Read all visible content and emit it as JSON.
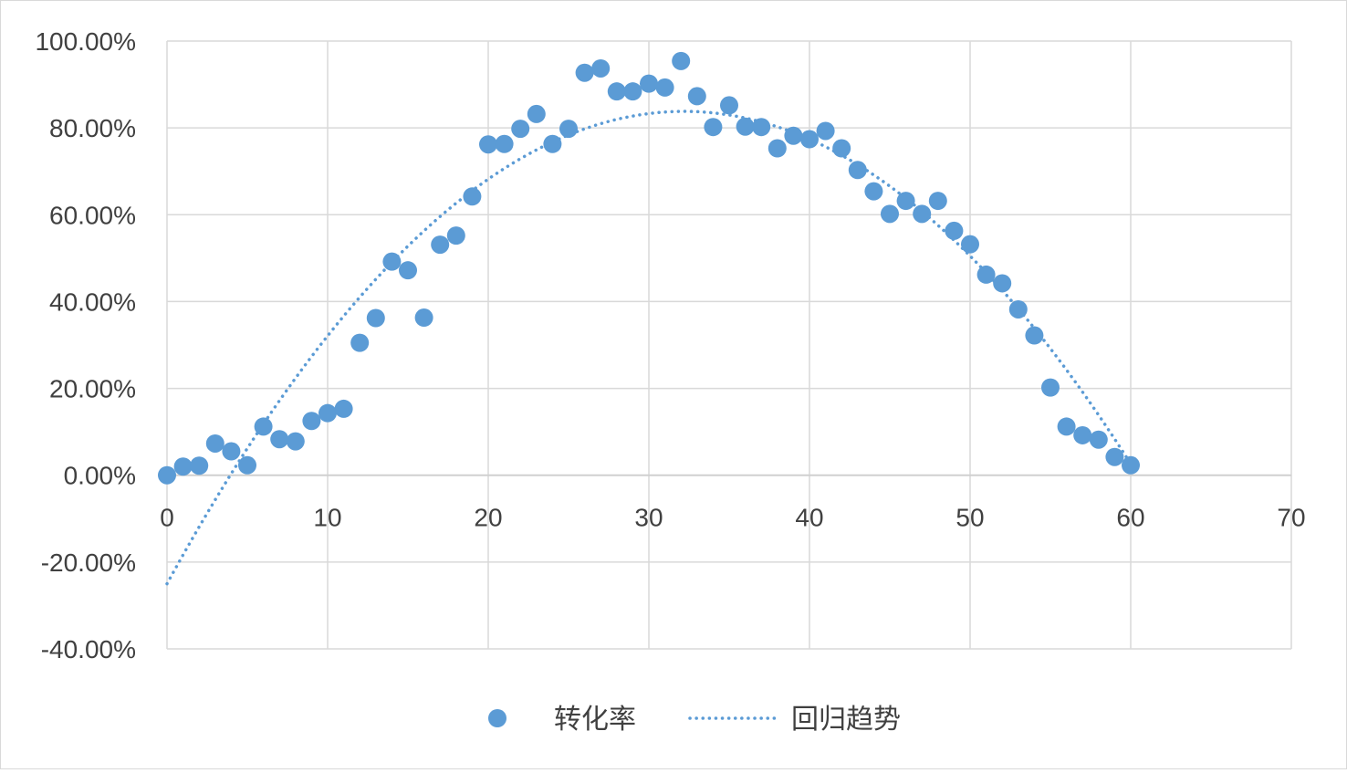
{
  "chart_data": {
    "type": "scatter",
    "title": "",
    "xlabel": "",
    "ylabel": "",
    "xlim": [
      0,
      70
    ],
    "ylim": [
      -0.4,
      1.0
    ],
    "x_ticks": [
      0,
      10,
      20,
      30,
      40,
      50,
      60,
      70
    ],
    "x_tick_labels": [
      "0",
      "10",
      "20",
      "30",
      "40",
      "50",
      "60",
      "70"
    ],
    "y_ticks": [
      -0.4,
      -0.2,
      0,
      0.2,
      0.4,
      0.6,
      0.8,
      1.0
    ],
    "y_tick_labels": [
      "-40.00%",
      "-20.00%",
      "0.00%",
      "20.00%",
      "40.00%",
      "60.00%",
      "80.00%",
      "100.00%"
    ],
    "grid": true,
    "legend_position": "bottom",
    "series": [
      {
        "name": "转化率",
        "kind": "scatter",
        "color": "#5b9bd5",
        "x": [
          0,
          1,
          2,
          3,
          4,
          5,
          6,
          7,
          8,
          9,
          10,
          11,
          12,
          13,
          14,
          15,
          16,
          17,
          18,
          19,
          20,
          21,
          22,
          23,
          24,
          25,
          26,
          27,
          28,
          29,
          30,
          31,
          32,
          33,
          34,
          35,
          36,
          37,
          38,
          39,
          40,
          41,
          42,
          43,
          44,
          45,
          46,
          47,
          48,
          49,
          50,
          51,
          52,
          53,
          54,
          55,
          56,
          57,
          58,
          59,
          60
        ],
        "y": [
          0.0,
          0.02,
          0.022,
          0.073,
          0.055,
          0.023,
          0.112,
          0.083,
          0.078,
          0.125,
          0.143,
          0.153,
          0.305,
          0.362,
          0.492,
          0.472,
          0.363,
          0.531,
          0.552,
          0.642,
          0.762,
          0.763,
          0.798,
          0.832,
          0.763,
          0.798,
          0.927,
          0.937,
          0.884,
          0.884,
          0.902,
          0.893,
          0.954,
          0.873,
          0.802,
          0.852,
          0.803,
          0.802,
          0.753,
          0.782,
          0.774,
          0.793,
          0.753,
          0.703,
          0.654,
          0.602,
          0.632,
          0.602,
          0.632,
          0.563,
          0.532,
          0.462,
          0.442,
          0.382,
          0.322,
          0.202,
          0.112,
          0.092,
          0.082,
          0.042,
          0.023
        ]
      },
      {
        "name": "回归趋势",
        "kind": "trendline",
        "color": "#5b9bd5",
        "style": "dotted",
        "polynomial_coefficients": [
          -0.25,
          0.0676,
          -0.00105
        ],
        "x_range": [
          0,
          60
        ]
      }
    ]
  }
}
